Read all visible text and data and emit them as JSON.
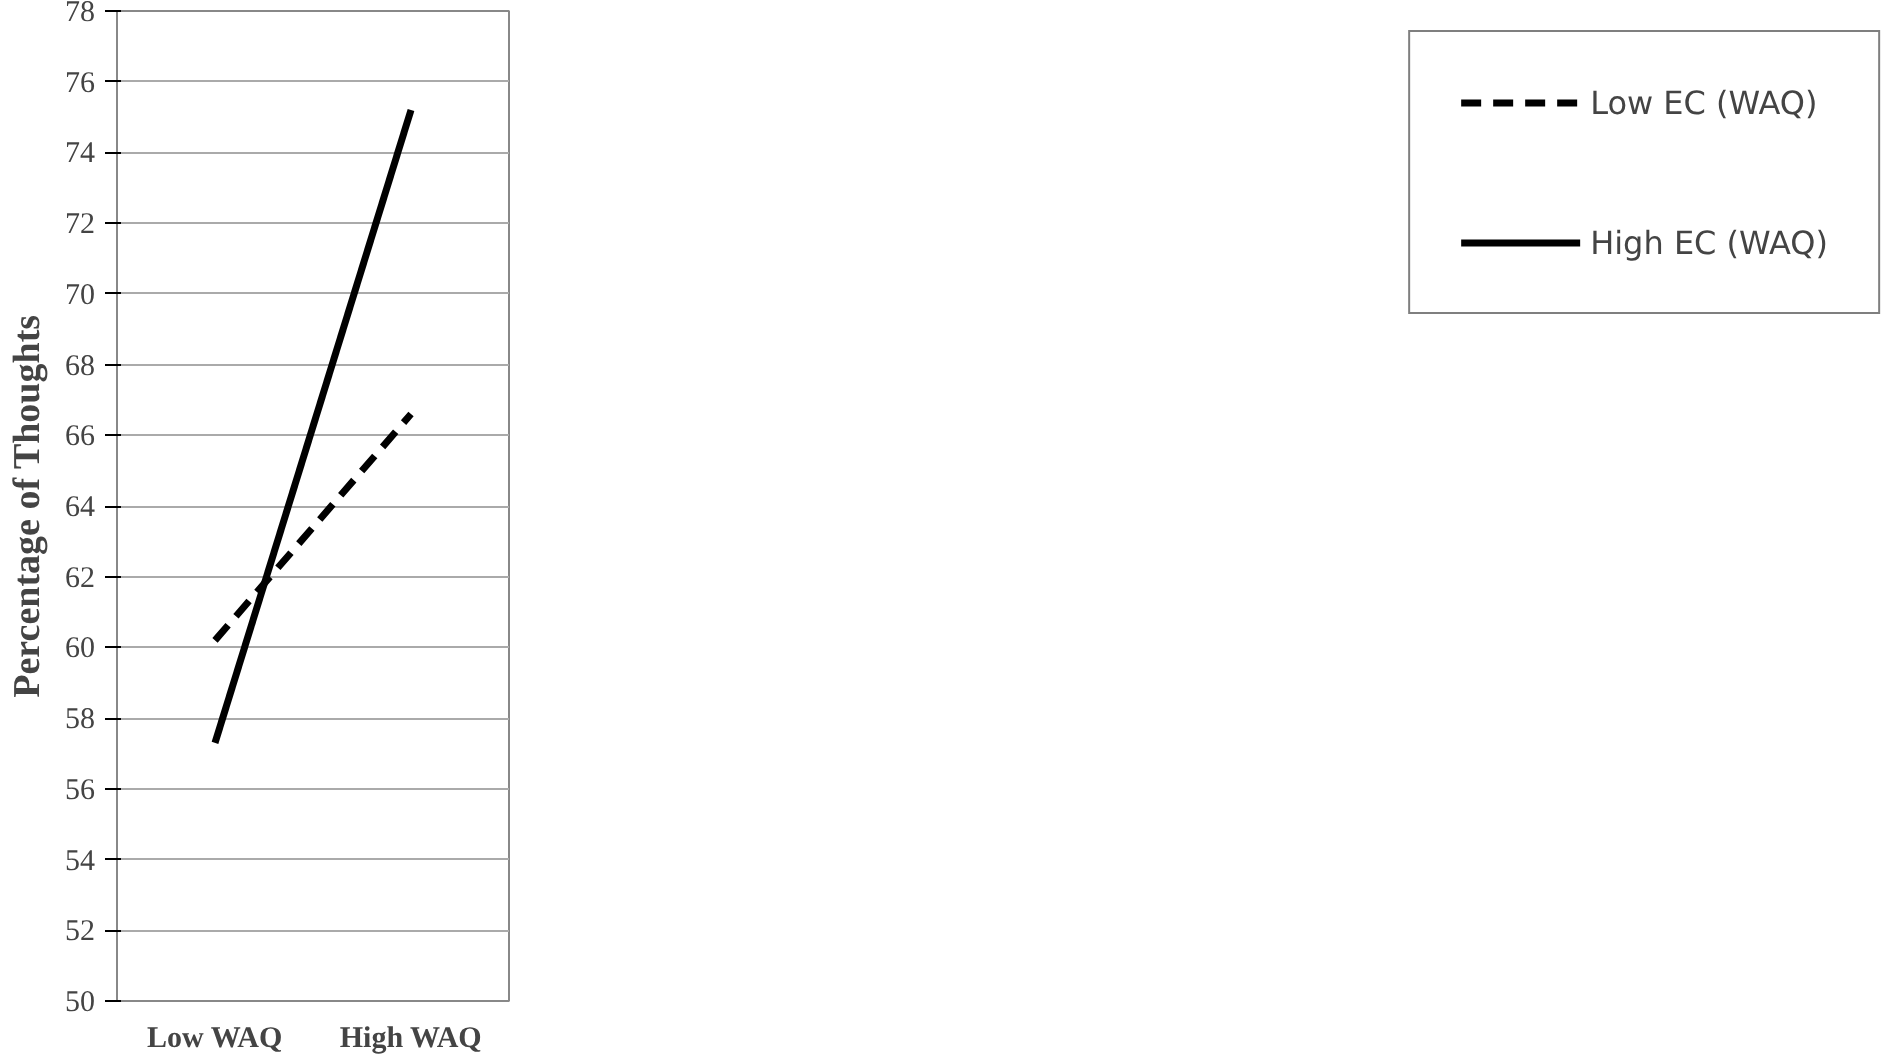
{
  "chart_data": {
    "type": "line",
    "ylabel": "Percentage of Thoughts",
    "categories": [
      "Low WAQ",
      "High WAQ"
    ],
    "series": [
      {
        "name": "Low EC (WAQ)",
        "color": "#000000",
        "values": [
          60.2,
          66.6
        ],
        "line_style": "dashed"
      },
      {
        "name": "High EC (WAQ)",
        "color": "#000000",
        "values": [
          57.3,
          75.2
        ],
        "line_style": "solid"
      }
    ],
    "ylim": [
      50,
      78
    ],
    "yticks": [
      50,
      52,
      54,
      56,
      58,
      60,
      62,
      64,
      66,
      68,
      70,
      72,
      74,
      76,
      78
    ],
    "grid": "y",
    "legend": "top right",
    "marker": "none"
  }
}
